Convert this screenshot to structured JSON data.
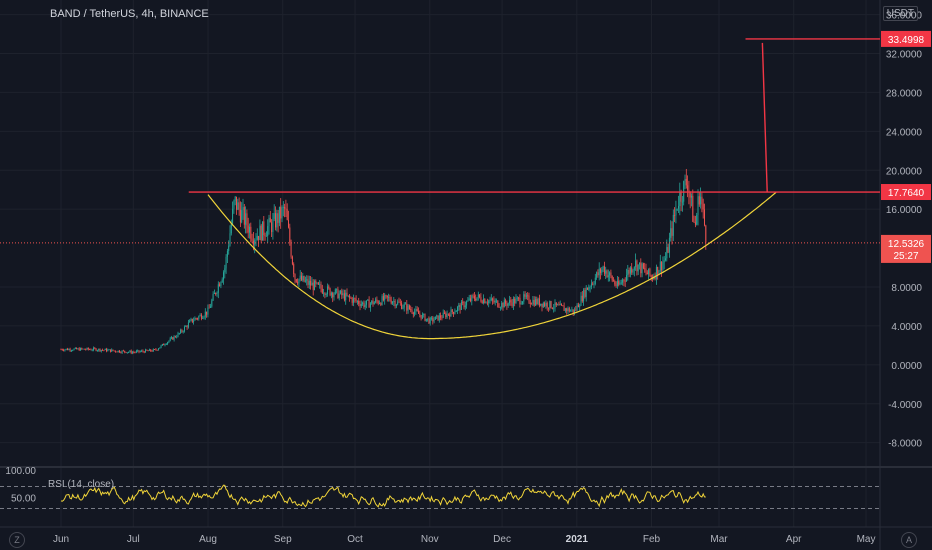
{
  "header": {
    "title": "BAND / TetherUS, 4h, BINANCE"
  },
  "axis": {
    "currency_unit": "USDT"
  },
  "chart_data": {
    "type": "candlestick",
    "symbol": "BAND / TetherUS",
    "interval": "4h",
    "exchange": "BINANCE",
    "price_ticks": [
      "36.0000",
      "32.0000",
      "28.0000",
      "24.0000",
      "20.0000",
      "16.0000",
      "8.0000",
      "4.0000",
      "0.0000",
      "-4.0000",
      "-8.0000"
    ],
    "price_ylim": [
      -10.5,
      37.5
    ],
    "time_labels": [
      "Jun",
      "Jul",
      "Aug",
      "Sep",
      "Oct",
      "Nov",
      "Dec",
      "2021",
      "Feb",
      "Mar",
      "Apr",
      "May"
    ],
    "current_price": {
      "value": 12.5326,
      "label": "12.5326",
      "countdown": "25:27"
    },
    "resistance": {
      "value": 17.764,
      "label": "17.7640",
      "color": "#f23645"
    },
    "target": {
      "value": 33.4998,
      "label": "33.4998",
      "color": "#f23645"
    },
    "cup_curve": {
      "color": "#f0d43a",
      "points": [
        [
          "Aug 1",
          17.5
        ],
        [
          "Nov 1",
          2.7
        ],
        [
          "Mar 25",
          17.8
        ]
      ]
    },
    "price_path": [
      [
        "Jun 1",
        1.6
      ],
      [
        "Jun 15",
        1.6
      ],
      [
        "Jul 1",
        1.3
      ],
      [
        "Jul 10",
        1.5
      ],
      [
        "Jul 20",
        3.2
      ],
      [
        "Jul 25",
        4.5
      ],
      [
        "Aug 1",
        5.5
      ],
      [
        "Aug 8",
        10.0
      ],
      [
        "Aug 12",
        16.8
      ],
      [
        "Aug 20",
        13.2
      ],
      [
        "Aug 28",
        14.5
      ],
      [
        "Sep 2",
        16.0
      ],
      [
        "Sep 6",
        9.0
      ],
      [
        "Sep 15",
        8.0
      ],
      [
        "Sep 25",
        7.2
      ],
      [
        "Oct 5",
        6.2
      ],
      [
        "Oct 15",
        6.8
      ],
      [
        "Oct 25",
        5.6
      ],
      [
        "Nov 1",
        4.5
      ],
      [
        "Nov 10",
        5.4
      ],
      [
        "Nov 20",
        7.0
      ],
      [
        "Dec 1",
        6.2
      ],
      [
        "Dec 10",
        6.8
      ],
      [
        "Dec 20",
        6.2
      ],
      [
        "Dec 31",
        5.5
      ],
      [
        "Jan 5",
        7.8
      ],
      [
        "Jan 12",
        10.0
      ],
      [
        "Jan 18",
        8.0
      ],
      [
        "Jan 25",
        10.5
      ],
      [
        "Feb 1",
        9.0
      ],
      [
        "Feb 7",
        11.0
      ],
      [
        "Feb 12",
        17.0
      ],
      [
        "Feb 16",
        19.0
      ],
      [
        "Feb 19",
        14.0
      ],
      [
        "Feb 21",
        18.0
      ],
      [
        "Feb 24",
        12.5
      ]
    ],
    "rsi": {
      "label": "RSI (14, close)",
      "ticks": [
        "100.00",
        "50.00"
      ],
      "levels": [
        70,
        30
      ],
      "color": "#f0d43a"
    }
  }
}
